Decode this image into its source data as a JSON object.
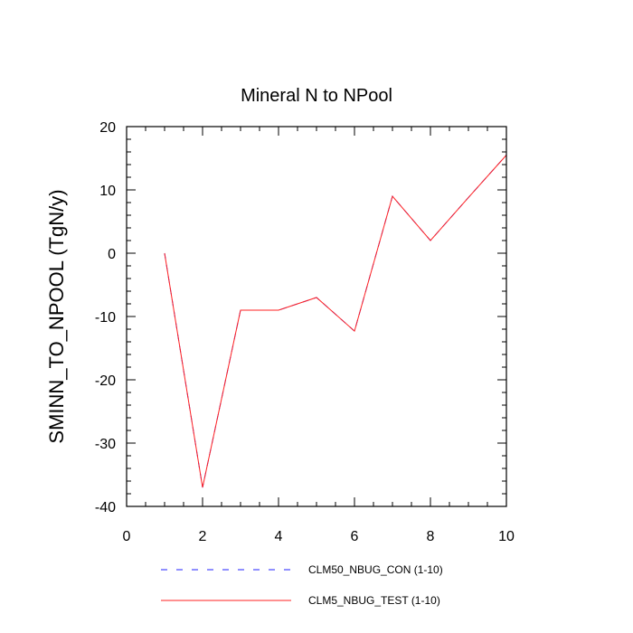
{
  "chart_data": {
    "type": "line",
    "title": "Mineral N to NPool",
    "xlabel": "",
    "ylabel": "SMINN_TO_NPOOL  (TgN/y)",
    "xlim": [
      0,
      10
    ],
    "ylim": [
      -40,
      20
    ],
    "x_ticks": [
      0,
      2,
      4,
      6,
      8,
      10
    ],
    "y_ticks": [
      -40,
      -30,
      -20,
      -10,
      0,
      10,
      20
    ],
    "x": [
      1,
      2,
      3,
      4,
      5,
      6,
      7,
      8,
      9,
      10
    ],
    "series": [
      {
        "name": "CLM50_NBUG_CON (1-10)",
        "color": "#2020ff",
        "style": "dashed",
        "values": [
          0,
          -37,
          -9,
          -9,
          -7,
          -12.3,
          9,
          2,
          8.8,
          15.5
        ]
      },
      {
        "name": "CLM5_NBUG_TEST (1-10)",
        "color": "#ff2020",
        "style": "solid",
        "values": [
          0,
          -37,
          -9,
          -9,
          -7,
          -12.3,
          9,
          2,
          8.8,
          15.5
        ]
      }
    ],
    "grid": false,
    "legend_position": "bottom"
  }
}
